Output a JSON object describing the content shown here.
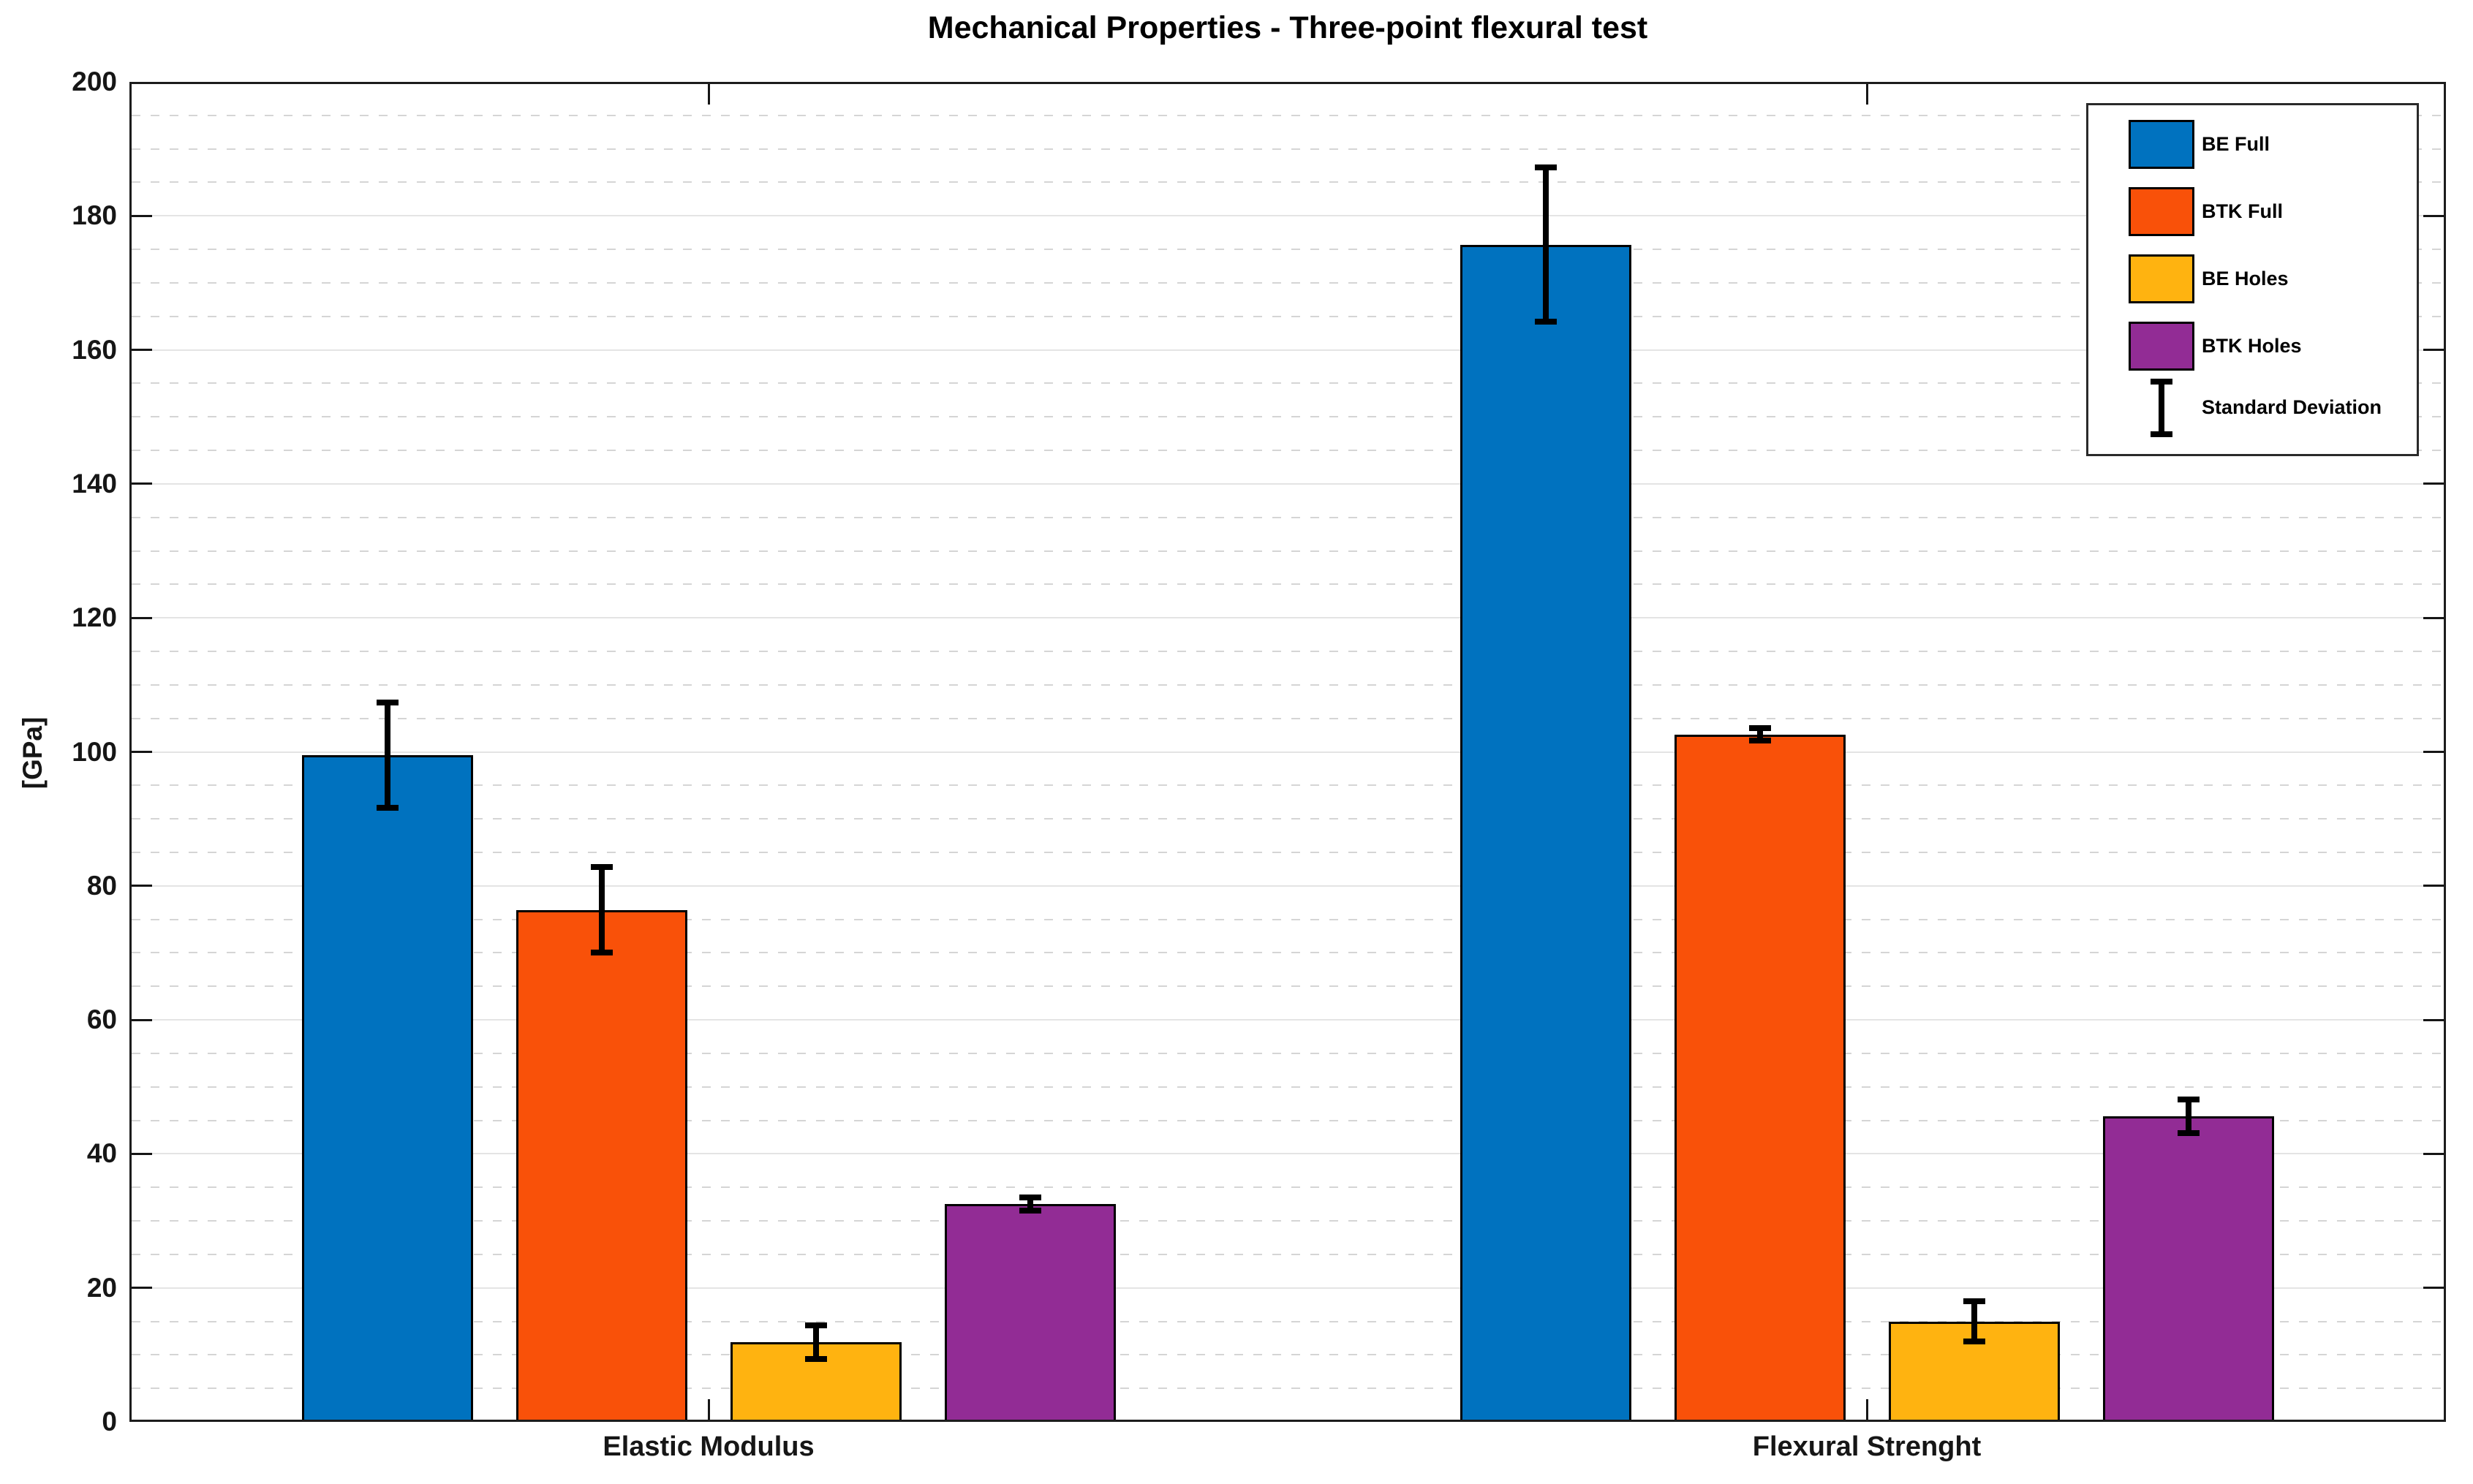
{
  "title": "Mechanical Properties - Three-point flexural test",
  "ylabel": "[GPa]",
  "chart_data": {
    "type": "bar",
    "categories": [
      "Elastic Modulus",
      "Flexural Strenght"
    ],
    "series": [
      {
        "name": "BE Full",
        "color": "#0072BF",
        "values": [
          99.5,
          175.7
        ],
        "std": [
          7.9,
          11.5
        ]
      },
      {
        "name": "BTK Full",
        "color": "#F95109",
        "values": [
          76.4,
          102.6
        ],
        "std": [
          6.4,
          0.9
        ]
      },
      {
        "name": "BE Holes",
        "color": "#FFB310",
        "values": [
          11.9,
          15.0
        ],
        "std": [
          2.5,
          3.0
        ]
      },
      {
        "name": "BTK Holes",
        "color": "#922C95",
        "values": [
          32.5,
          45.6
        ],
        "std": [
          1.0,
          2.5
        ]
      }
    ],
    "ylim": [
      0,
      200
    ],
    "ytick_step": 20,
    "yticks": [
      0,
      20,
      40,
      60,
      80,
      100,
      120,
      140,
      160,
      180,
      200
    ],
    "minor_step": 5,
    "grid": {
      "major": "solid horizontal",
      "minor": "dashed horizontal",
      "vertical": "none"
    },
    "legend": {
      "position": "top-right",
      "std_label": "Standard Deviation"
    }
  }
}
